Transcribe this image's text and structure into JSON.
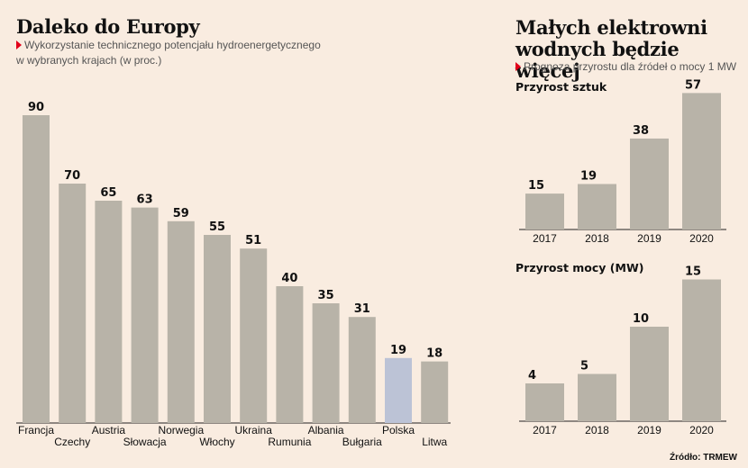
{
  "left": {
    "title": "Daleko do Europy",
    "subtitle_line1": "Wykorzystanie technicznego potencjału hydroenergetycznego",
    "subtitle_line2": "w wybranych krajach (w proc.)"
  },
  "right": {
    "title_line1": "Małych elektrowni",
    "title_line2": "wodnych będzie więcej",
    "subtitle": "Prognoza przyrostu dla źródeł o mocy 1 MW"
  },
  "source": "Źródło: TRMEW",
  "colors": {
    "bar": "#b8b3a8",
    "highlight": "#bcc3d6",
    "marker": "#e2001a",
    "background": "#f9ece0"
  },
  "chart_data": [
    {
      "type": "bar",
      "title": "Daleko do Europy",
      "subtitle": "Wykorzystanie technicznego potencjału hydroenergetycznego w wybranych krajach (w proc.)",
      "categories": [
        "Francja",
        "Czechy",
        "Austria",
        "Słowacja",
        "Norwegia",
        "Włochy",
        "Ukraina",
        "Rumunia",
        "Albania",
        "Bułgaria",
        "Polska",
        "Litwa"
      ],
      "values": [
        90,
        70,
        65,
        63,
        59,
        55,
        51,
        40,
        35,
        31,
        19,
        18
      ],
      "highlight": "Polska",
      "xlabel": "",
      "ylabel": "",
      "ylim": [
        0,
        100
      ]
    },
    {
      "type": "bar",
      "title": "Przyrost sztuk",
      "categories": [
        "2017",
        "2018",
        "2019",
        "2020"
      ],
      "values": [
        15,
        19,
        38,
        57
      ],
      "xlabel": "",
      "ylabel": "",
      "ylim": [
        0,
        60
      ]
    },
    {
      "type": "bar",
      "title": "Przyrost mocy (MW)",
      "categories": [
        "2017",
        "2018",
        "2019",
        "2020"
      ],
      "values": [
        4,
        5,
        10,
        15
      ],
      "xlabel": "",
      "ylabel": "",
      "ylim": [
        0,
        16
      ]
    }
  ]
}
